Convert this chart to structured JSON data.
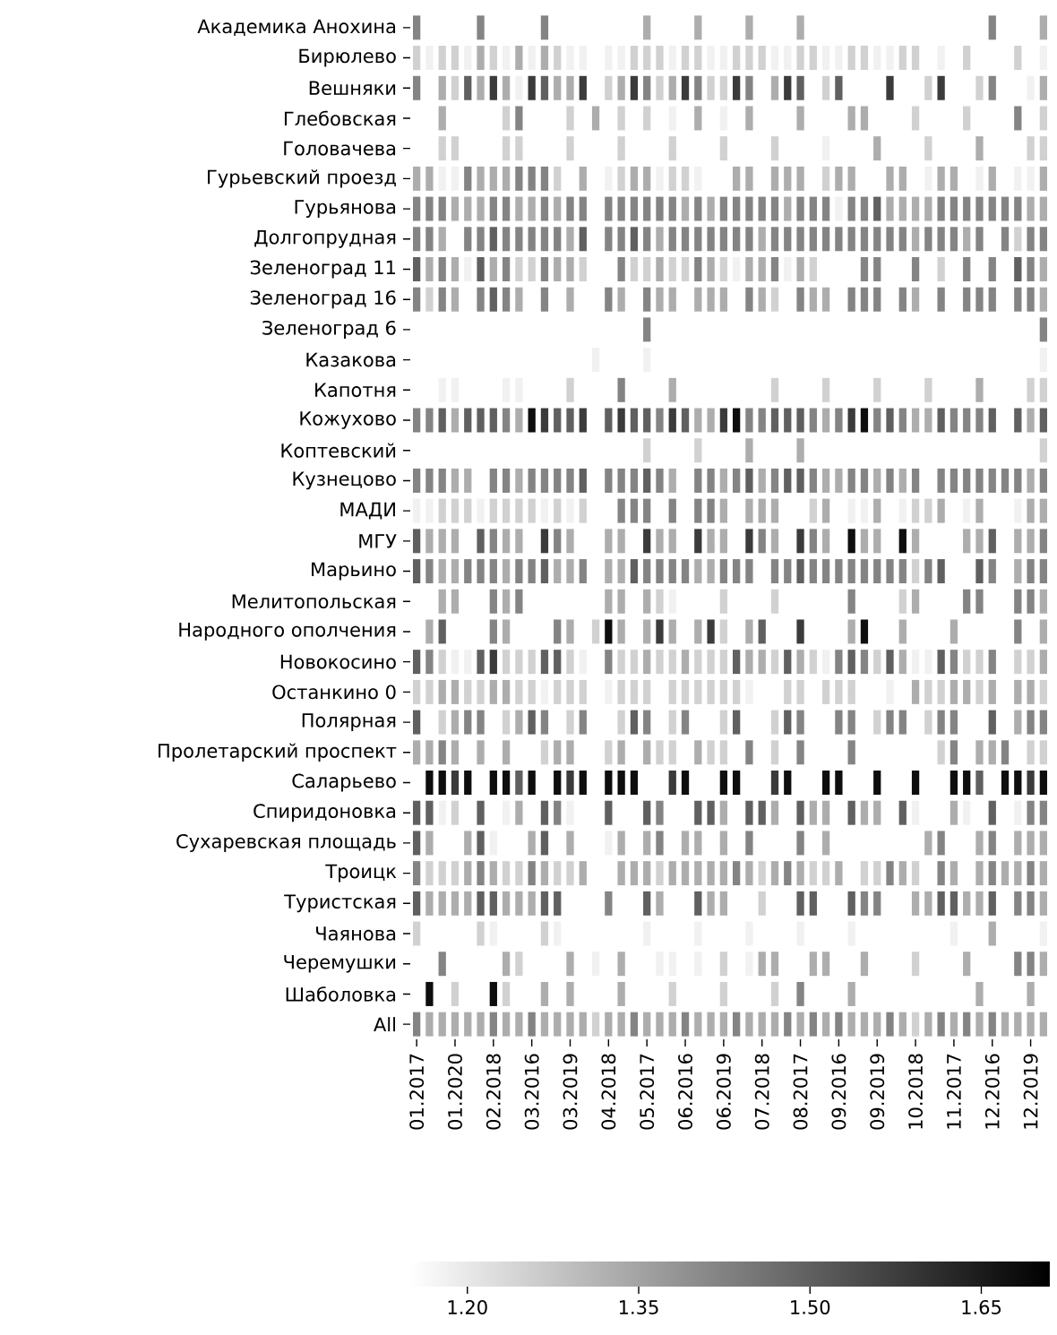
{
  "chart_data": {
    "type": "heatmap",
    "categories": [
      "01.2017",
      null,
      null,
      "01.2020",
      null,
      null,
      "02.2018",
      null,
      null,
      "03.2016",
      null,
      null,
      "03.2019",
      null,
      null,
      "04.2018",
      null,
      null,
      "05.2017",
      null,
      null,
      "06.2016",
      null,
      null,
      "06.2019",
      null,
      null,
      "07.2018",
      null,
      null,
      "08.2017",
      null,
      null,
      "09.2016",
      null,
      null,
      "09.2019",
      null,
      null,
      "10.2018",
      null,
      null,
      "11.2017",
      null,
      null,
      "12.2016",
      null,
      null,
      "12.2019",
      null
    ],
    "y_categories": [
      "Академика Анохина",
      "Бирюлево",
      "Вешняки",
      "Глебовская",
      "Головачева",
      "Гурьевский проезд",
      "Гурьянова",
      "Долгопрудная",
      "Зеленоград 11",
      "Зеленоград 16",
      "Зеленоград 6",
      "Казакова",
      "Капотня",
      "Кожухово",
      "Коптевский",
      "Кузнецово",
      "МАДИ",
      "МГУ",
      "Марьино",
      "Мелитопольская",
      "Народного ополчения",
      "Новокосино",
      "Останкино 0",
      "Полярная",
      "Пролетарский проспект",
      "Саларьево",
      "Спиридоновка",
      "Сухаревская площадь",
      "Троицк",
      "Туристская",
      "Чаянова",
      "Черемушки",
      "Шаболовка",
      "All"
    ],
    "cells": [
      [
        1.42,
        null,
        null,
        null,
        null,
        1.42,
        null,
        null,
        null,
        null,
        1.42,
        null,
        null,
        null,
        null,
        null,
        null,
        null,
        1.33,
        null,
        null,
        null,
        1.33,
        null,
        null,
        null,
        1.33,
        null,
        null,
        null,
        1.33,
        null,
        null,
        null,
        null,
        null,
        null,
        null,
        null,
        null,
        null,
        null,
        null,
        null,
        null,
        1.42,
        null,
        null,
        null,
        1.33
      ],
      [
        1.25,
        1.18,
        1.25,
        1.25,
        1.18,
        1.33,
        1.25,
        1.18,
        1.33,
        1.18,
        1.33,
        1.25,
        1.18,
        1.18,
        null,
        1.18,
        1.18,
        1.25,
        1.25,
        1.25,
        1.18,
        1.25,
        1.25,
        1.18,
        1.18,
        1.25,
        1.25,
        1.25,
        1.18,
        1.18,
        1.25,
        1.25,
        1.18,
        1.18,
        1.25,
        1.25,
        1.18,
        1.18,
        1.25,
        1.25,
        null,
        1.18,
        null,
        1.25,
        null,
        null,
        null,
        1.25,
        null,
        1.18
      ],
      [
        1.42,
        null,
        1.33,
        1.25,
        1.5,
        1.33,
        1.58,
        1.33,
        1.18,
        1.58,
        1.5,
        1.33,
        1.33,
        1.58,
        null,
        1.25,
        1.33,
        1.58,
        1.42,
        1.25,
        1.33,
        1.58,
        1.42,
        1.25,
        1.25,
        1.58,
        1.42,
        null,
        1.33,
        1.58,
        1.5,
        null,
        1.25,
        1.5,
        null,
        null,
        null,
        1.58,
        null,
        null,
        1.25,
        1.58,
        null,
        null,
        1.25,
        1.42,
        null,
        null,
        1.18,
        1.33
      ],
      [
        null,
        null,
        1.33,
        null,
        null,
        null,
        null,
        1.25,
        1.42,
        null,
        null,
        null,
        1.25,
        null,
        1.33,
        null,
        1.25,
        null,
        1.25,
        null,
        1.18,
        null,
        1.33,
        null,
        1.18,
        null,
        1.33,
        null,
        null,
        null,
        1.33,
        null,
        null,
        null,
        1.33,
        1.33,
        null,
        null,
        null,
        1.25,
        null,
        null,
        null,
        1.25,
        null,
        null,
        null,
        1.42,
        null,
        1.25
      ],
      [
        null,
        null,
        1.25,
        1.25,
        null,
        null,
        null,
        1.25,
        1.25,
        null,
        null,
        null,
        1.25,
        null,
        null,
        null,
        1.25,
        null,
        null,
        null,
        1.25,
        null,
        null,
        null,
        1.25,
        null,
        null,
        null,
        1.25,
        null,
        null,
        null,
        1.18,
        null,
        null,
        null,
        1.33,
        null,
        null,
        null,
        1.25,
        null,
        null,
        null,
        1.33,
        null,
        null,
        null,
        1.25,
        1.25
      ],
      [
        1.33,
        1.33,
        1.18,
        1.18,
        1.42,
        1.33,
        1.33,
        1.33,
        1.42,
        1.42,
        1.42,
        1.25,
        null,
        1.33,
        null,
        1.18,
        1.25,
        1.33,
        1.33,
        1.18,
        1.25,
        1.25,
        1.18,
        null,
        null,
        1.33,
        1.33,
        null,
        1.33,
        1.33,
        1.33,
        null,
        1.25,
        1.33,
        1.33,
        null,
        null,
        1.33,
        1.33,
        null,
        1.18,
        1.33,
        1.33,
        null,
        1.18,
        1.33,
        null,
        1.18,
        1.18,
        1.33
      ],
      [
        1.42,
        1.42,
        1.42,
        1.33,
        1.33,
        1.33,
        1.42,
        1.42,
        1.33,
        1.33,
        1.42,
        1.33,
        1.42,
        1.42,
        null,
        1.42,
        1.42,
        1.42,
        1.42,
        1.42,
        1.42,
        1.33,
        1.42,
        1.33,
        1.42,
        1.42,
        1.42,
        1.42,
        1.42,
        1.33,
        1.42,
        1.42,
        1.42,
        1.18,
        1.42,
        1.42,
        1.5,
        1.33,
        1.33,
        1.33,
        1.33,
        1.42,
        1.42,
        1.42,
        1.42,
        1.42,
        1.42,
        1.42,
        1.33,
        1.33
      ],
      [
        1.42,
        1.42,
        1.33,
        null,
        1.42,
        1.42,
        1.5,
        1.42,
        1.42,
        1.42,
        1.42,
        1.42,
        1.33,
        1.5,
        null,
        1.42,
        1.42,
        1.5,
        1.42,
        1.33,
        1.42,
        1.42,
        1.42,
        1.42,
        1.42,
        1.42,
        1.42,
        1.33,
        1.42,
        1.42,
        1.42,
        1.42,
        1.42,
        1.42,
        1.42,
        1.42,
        1.42,
        1.42,
        1.42,
        1.33,
        1.42,
        1.42,
        1.42,
        1.33,
        1.42,
        null,
        1.42,
        1.25,
        1.42,
        1.42
      ],
      [
        1.5,
        1.33,
        1.42,
        1.33,
        1.18,
        1.5,
        1.33,
        1.42,
        1.25,
        1.25,
        1.42,
        1.33,
        1.33,
        1.25,
        null,
        null,
        1.42,
        1.25,
        1.25,
        1.33,
        1.25,
        1.25,
        1.42,
        1.33,
        1.25,
        1.18,
        1.33,
        1.33,
        1.42,
        1.18,
        1.33,
        1.25,
        null,
        null,
        null,
        1.42,
        1.42,
        null,
        null,
        1.42,
        null,
        1.25,
        null,
        1.42,
        null,
        1.42,
        null,
        1.5,
        1.42,
        1.33
      ],
      [
        1.42,
        1.25,
        1.42,
        1.33,
        null,
        1.42,
        1.5,
        1.42,
        1.33,
        null,
        1.42,
        null,
        1.33,
        null,
        null,
        1.42,
        1.33,
        null,
        1.42,
        1.33,
        1.33,
        null,
        1.33,
        1.33,
        1.33,
        null,
        1.42,
        1.33,
        1.25,
        null,
        1.42,
        1.33,
        1.33,
        null,
        1.42,
        1.42,
        1.42,
        null,
        1.42,
        1.33,
        null,
        1.42,
        null,
        1.42,
        1.42,
        1.42,
        null,
        1.42,
        1.42,
        1.33
      ],
      [
        null,
        null,
        null,
        null,
        null,
        null,
        null,
        null,
        null,
        null,
        null,
        null,
        null,
        null,
        null,
        null,
        null,
        null,
        1.42,
        null,
        null,
        null,
        null,
        null,
        null,
        null,
        null,
        null,
        null,
        null,
        null,
        null,
        null,
        null,
        null,
        null,
        null,
        null,
        null,
        null,
        null,
        null,
        null,
        null,
        null,
        null,
        null,
        null,
        null,
        1.42
      ],
      [
        null,
        null,
        null,
        null,
        null,
        null,
        null,
        null,
        null,
        null,
        null,
        null,
        null,
        null,
        1.18,
        null,
        null,
        null,
        1.18,
        null,
        null,
        null,
        null,
        null,
        null,
        null,
        null,
        null,
        null,
        null,
        null,
        null,
        null,
        null,
        null,
        null,
        null,
        null,
        null,
        null,
        null,
        null,
        null,
        null,
        null,
        null,
        null,
        null,
        null,
        1.18
      ],
      [
        null,
        null,
        1.18,
        1.18,
        null,
        null,
        null,
        1.18,
        1.18,
        null,
        null,
        null,
        1.25,
        null,
        null,
        null,
        1.42,
        null,
        null,
        null,
        1.33,
        null,
        null,
        null,
        null,
        null,
        null,
        null,
        1.25,
        null,
        null,
        null,
        1.25,
        null,
        null,
        null,
        1.25,
        null,
        null,
        null,
        1.25,
        null,
        null,
        null,
        1.33,
        null,
        null,
        null,
        1.25,
        1.25
      ],
      [
        1.42,
        1.42,
        1.5,
        1.33,
        1.5,
        1.5,
        1.5,
        1.42,
        1.33,
        1.68,
        1.58,
        1.5,
        1.5,
        1.58,
        null,
        1.5,
        1.58,
        1.5,
        1.5,
        1.42,
        1.58,
        1.5,
        1.33,
        1.33,
        1.58,
        1.68,
        1.42,
        1.42,
        1.5,
        1.5,
        1.5,
        1.42,
        1.33,
        1.42,
        1.58,
        1.68,
        1.42,
        1.5,
        1.42,
        1.33,
        1.33,
        1.5,
        1.42,
        1.42,
        1.42,
        1.5,
        null,
        1.5,
        1.33,
        1.5
      ],
      [
        null,
        null,
        null,
        null,
        null,
        null,
        null,
        null,
        null,
        null,
        null,
        null,
        null,
        null,
        null,
        null,
        null,
        null,
        1.25,
        null,
        null,
        null,
        1.25,
        null,
        null,
        null,
        1.33,
        null,
        null,
        null,
        1.33,
        null,
        null,
        null,
        null,
        null,
        null,
        null,
        null,
        null,
        null,
        null,
        null,
        null,
        null,
        null,
        null,
        null,
        null,
        1.25
      ],
      [
        1.42,
        1.42,
        1.42,
        1.33,
        1.33,
        null,
        1.42,
        1.42,
        1.33,
        1.42,
        1.42,
        1.42,
        1.42,
        1.5,
        null,
        1.42,
        1.42,
        1.42,
        1.5,
        1.42,
        1.33,
        null,
        1.42,
        1.42,
        1.33,
        1.42,
        1.5,
        1.33,
        1.42,
        1.5,
        1.5,
        1.42,
        1.33,
        1.33,
        1.42,
        1.42,
        1.33,
        1.42,
        1.33,
        1.42,
        null,
        1.42,
        1.42,
        1.42,
        1.42,
        1.42,
        1.42,
        1.42,
        1.33,
        1.42
      ],
      [
        1.18,
        1.18,
        1.25,
        1.25,
        1.25,
        1.18,
        1.25,
        1.25,
        1.25,
        1.25,
        1.18,
        1.25,
        1.18,
        1.25,
        null,
        null,
        1.42,
        1.42,
        1.42,
        null,
        1.42,
        null,
        1.42,
        1.42,
        1.33,
        null,
        1.33,
        1.33,
        1.33,
        null,
        null,
        1.25,
        1.33,
        null,
        1.18,
        1.18,
        1.33,
        null,
        1.18,
        1.25,
        1.25,
        1.33,
        null,
        1.18,
        1.33,
        null,
        null,
        1.18,
        1.33,
        1.33
      ],
      [
        1.5,
        1.33,
        1.33,
        1.33,
        null,
        1.5,
        1.42,
        1.33,
        1.33,
        null,
        1.58,
        1.42,
        1.33,
        null,
        null,
        1.33,
        1.33,
        null,
        1.58,
        1.33,
        1.33,
        null,
        1.58,
        1.33,
        1.33,
        null,
        1.58,
        1.42,
        1.33,
        null,
        1.58,
        1.42,
        1.33,
        null,
        1.68,
        1.33,
        1.33,
        null,
        1.68,
        1.33,
        null,
        null,
        null,
        1.33,
        1.33,
        1.5,
        null,
        1.33,
        1.33,
        1.42
      ],
      [
        1.5,
        1.42,
        1.33,
        1.33,
        1.42,
        1.42,
        1.42,
        1.33,
        1.42,
        1.42,
        1.5,
        1.33,
        1.33,
        1.42,
        null,
        1.33,
        1.33,
        1.5,
        1.42,
        1.42,
        1.42,
        1.42,
        1.33,
        1.33,
        1.42,
        1.42,
        1.42,
        null,
        1.42,
        1.42,
        1.5,
        1.42,
        1.42,
        1.42,
        1.42,
        1.42,
        1.42,
        1.42,
        1.42,
        1.25,
        1.42,
        1.5,
        null,
        null,
        1.5,
        1.42,
        null,
        1.33,
        1.42,
        1.42
      ],
      [
        null,
        null,
        1.33,
        1.33,
        null,
        null,
        1.42,
        1.33,
        1.42,
        null,
        null,
        null,
        null,
        null,
        null,
        1.33,
        1.33,
        null,
        1.33,
        1.25,
        1.18,
        null,
        null,
        null,
        1.25,
        null,
        null,
        null,
        1.25,
        null,
        null,
        null,
        null,
        null,
        1.42,
        null,
        null,
        null,
        1.25,
        1.33,
        null,
        null,
        null,
        1.42,
        1.42,
        null,
        null,
        1.42,
        1.42,
        1.33
      ],
      [
        null,
        1.33,
        1.5,
        null,
        null,
        null,
        1.42,
        1.33,
        null,
        null,
        null,
        1.42,
        1.33,
        null,
        1.25,
        1.68,
        1.33,
        null,
        1.33,
        1.58,
        1.33,
        null,
        1.33,
        1.58,
        1.25,
        null,
        1.33,
        1.5,
        null,
        null,
        1.58,
        null,
        null,
        null,
        1.33,
        1.68,
        null,
        null,
        1.33,
        null,
        null,
        null,
        1.33,
        null,
        null,
        null,
        null,
        1.42,
        null,
        1.33
      ],
      [
        1.5,
        1.42,
        1.25,
        1.18,
        1.18,
        1.5,
        1.58,
        1.25,
        1.25,
        1.25,
        1.5,
        1.5,
        1.25,
        1.18,
        null,
        1.42,
        1.25,
        1.25,
        1.33,
        1.25,
        1.25,
        1.33,
        1.25,
        1.25,
        1.25,
        1.5,
        1.33,
        1.33,
        1.25,
        1.5,
        1.33,
        1.25,
        1.18,
        1.42,
        1.5,
        1.42,
        1.25,
        1.5,
        1.33,
        1.18,
        1.18,
        1.5,
        1.42,
        1.25,
        1.25,
        1.42,
        null,
        1.25,
        1.25,
        1.33
      ],
      [
        1.25,
        1.25,
        1.33,
        1.33,
        1.25,
        1.25,
        1.33,
        1.33,
        1.25,
        1.25,
        1.18,
        1.25,
        1.25,
        1.25,
        null,
        1.18,
        1.25,
        1.25,
        1.25,
        null,
        1.25,
        1.25,
        1.25,
        1.25,
        1.25,
        1.25,
        1.18,
        null,
        null,
        1.25,
        1.25,
        null,
        1.25,
        1.25,
        1.25,
        null,
        null,
        1.18,
        null,
        1.33,
        1.25,
        1.25,
        1.33,
        1.33,
        1.25,
        1.33,
        null,
        1.33,
        1.33,
        1.25
      ],
      [
        1.5,
        null,
        1.25,
        1.33,
        1.42,
        1.42,
        null,
        1.25,
        1.33,
        1.5,
        1.42,
        null,
        1.25,
        1.42,
        null,
        null,
        1.25,
        1.5,
        1.42,
        null,
        1.25,
        1.42,
        null,
        null,
        1.25,
        1.5,
        null,
        null,
        1.25,
        1.5,
        1.42,
        null,
        null,
        1.42,
        1.42,
        null,
        1.25,
        1.42,
        1.42,
        null,
        1.25,
        1.42,
        1.42,
        null,
        null,
        1.5,
        null,
        1.33,
        1.42,
        1.42
      ],
      [
        1.33,
        1.33,
        1.42,
        1.33,
        null,
        1.33,
        null,
        1.33,
        null,
        null,
        1.25,
        1.33,
        1.33,
        null,
        null,
        1.25,
        1.33,
        null,
        1.33,
        1.25,
        1.25,
        null,
        1.33,
        1.25,
        1.25,
        null,
        1.42,
        null,
        1.25,
        null,
        1.42,
        null,
        null,
        null,
        1.42,
        null,
        null,
        null,
        null,
        null,
        null,
        1.25,
        1.42,
        null,
        1.33,
        1.33,
        1.42,
        null,
        1.25,
        1.25
      ],
      [
        null,
        1.68,
        1.68,
        1.58,
        1.68,
        null,
        1.68,
        1.68,
        1.5,
        1.68,
        null,
        1.68,
        1.58,
        1.68,
        null,
        1.68,
        1.68,
        1.68,
        null,
        null,
        1.58,
        1.68,
        null,
        null,
        1.68,
        1.68,
        null,
        null,
        1.58,
        1.68,
        null,
        null,
        1.68,
        1.68,
        null,
        null,
        1.68,
        null,
        null,
        1.68,
        null,
        null,
        1.68,
        1.68,
        1.5,
        null,
        1.68,
        1.68,
        1.58,
        1.68
      ],
      [
        1.5,
        1.5,
        1.18,
        1.25,
        null,
        1.5,
        null,
        1.18,
        1.33,
        null,
        1.5,
        1.42,
        1.18,
        null,
        null,
        1.5,
        null,
        null,
        1.5,
        1.42,
        null,
        null,
        1.5,
        1.5,
        1.33,
        null,
        1.5,
        1.5,
        1.33,
        null,
        1.5,
        1.33,
        1.33,
        null,
        1.5,
        1.33,
        1.33,
        null,
        1.5,
        1.18,
        null,
        null,
        1.33,
        1.18,
        null,
        1.5,
        null,
        1.18,
        1.42,
        1.42
      ],
      [
        1.5,
        1.33,
        null,
        null,
        1.33,
        1.5,
        1.18,
        null,
        null,
        1.33,
        1.5,
        null,
        1.33,
        null,
        null,
        1.18,
        1.33,
        null,
        1.33,
        1.42,
        null,
        1.33,
        1.33,
        null,
        1.33,
        null,
        1.42,
        null,
        null,
        null,
        1.42,
        null,
        1.33,
        null,
        null,
        null,
        null,
        null,
        null,
        null,
        1.33,
        1.42,
        null,
        null,
        1.33,
        1.42,
        null,
        1.33,
        1.33,
        1.33
      ],
      [
        1.42,
        1.25,
        1.25,
        1.25,
        1.33,
        1.42,
        1.33,
        1.25,
        1.25,
        1.42,
        1.33,
        1.25,
        1.25,
        1.33,
        null,
        null,
        1.33,
        1.33,
        1.33,
        1.25,
        1.33,
        1.33,
        1.33,
        1.33,
        1.33,
        1.42,
        1.33,
        1.25,
        1.33,
        1.42,
        1.33,
        1.25,
        1.25,
        1.33,
        null,
        1.25,
        1.25,
        1.42,
        1.33,
        1.25,
        null,
        1.42,
        1.33,
        null,
        1.33,
        1.42,
        1.33,
        1.33,
        1.42,
        1.33
      ],
      [
        1.5,
        1.33,
        1.33,
        1.33,
        1.33,
        1.5,
        1.5,
        1.33,
        1.33,
        1.33,
        1.5,
        1.5,
        null,
        null,
        null,
        1.42,
        null,
        null,
        1.5,
        1.33,
        null,
        null,
        1.5,
        1.33,
        1.33,
        null,
        null,
        1.25,
        null,
        null,
        1.5,
        1.5,
        null,
        null,
        1.5,
        1.42,
        1.42,
        null,
        null,
        1.33,
        1.33,
        1.5,
        1.5,
        1.33,
        1.33,
        1.5,
        null,
        1.42,
        1.42,
        1.33
      ],
      [
        1.25,
        null,
        null,
        null,
        null,
        1.25,
        1.18,
        null,
        null,
        null,
        1.25,
        1.18,
        null,
        null,
        null,
        null,
        null,
        null,
        1.18,
        null,
        null,
        null,
        1.18,
        null,
        null,
        null,
        1.18,
        null,
        null,
        null,
        1.18,
        null,
        null,
        null,
        1.18,
        null,
        null,
        null,
        null,
        null,
        null,
        null,
        1.18,
        null,
        null,
        1.33,
        null,
        null,
        null,
        1.18
      ],
      [
        null,
        null,
        1.42,
        null,
        null,
        null,
        null,
        1.33,
        1.25,
        null,
        null,
        null,
        1.33,
        null,
        1.18,
        null,
        1.33,
        null,
        null,
        1.18,
        1.18,
        null,
        1.18,
        null,
        1.25,
        null,
        1.18,
        1.33,
        1.33,
        null,
        null,
        1.33,
        1.33,
        null,
        null,
        1.33,
        null,
        null,
        null,
        1.25,
        null,
        null,
        null,
        1.33,
        null,
        null,
        null,
        1.42,
        1.42,
        1.33
      ],
      [
        null,
        1.68,
        null,
        1.25,
        null,
        null,
        1.68,
        1.25,
        null,
        null,
        1.33,
        null,
        1.33,
        null,
        null,
        null,
        1.33,
        null,
        null,
        null,
        1.25,
        null,
        null,
        null,
        1.25,
        null,
        null,
        null,
        1.25,
        null,
        1.42,
        null,
        null,
        null,
        1.33,
        null,
        null,
        null,
        null,
        null,
        null,
        null,
        null,
        null,
        1.33,
        null,
        null,
        null,
        1.33,
        null
      ],
      [
        1.42,
        1.33,
        1.33,
        1.33,
        1.33,
        1.33,
        1.42,
        1.33,
        1.33,
        1.42,
        1.33,
        1.33,
        1.33,
        1.33,
        1.25,
        1.33,
        1.33,
        1.42,
        1.33,
        1.33,
        1.33,
        1.42,
        1.33,
        1.33,
        1.33,
        1.42,
        1.33,
        1.33,
        1.33,
        1.42,
        1.33,
        1.42,
        1.33,
        1.42,
        1.33,
        1.33,
        1.33,
        1.42,
        1.33,
        1.25,
        1.33,
        1.42,
        1.33,
        1.42,
        1.33,
        1.42,
        1.33,
        1.33,
        1.33,
        1.33
      ]
    ],
    "clim": [
      1.15,
      1.71
    ],
    "cticks": [
      {
        "value": 1.2,
        "label": "1.20"
      },
      {
        "value": 1.35,
        "label": "1.35"
      },
      {
        "value": 1.5,
        "label": "1.50"
      },
      {
        "value": 1.65,
        "label": "1.65"
      }
    ]
  }
}
